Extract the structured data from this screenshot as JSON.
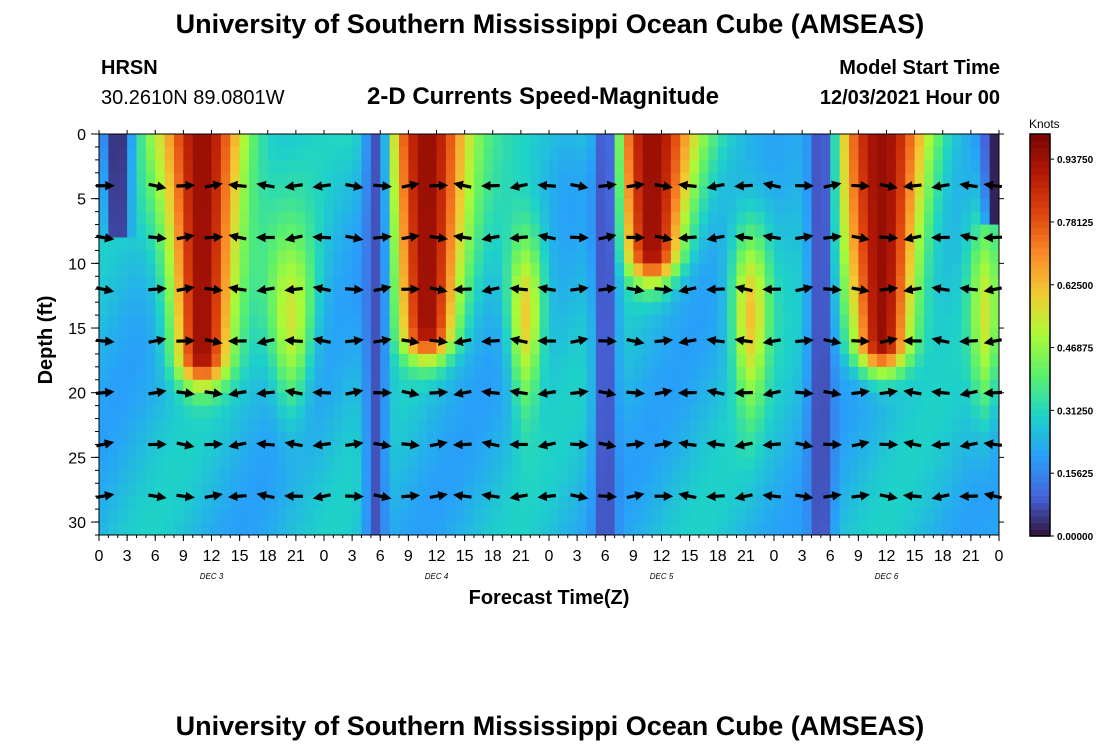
{
  "title": "University of Southern Mississippi Ocean Cube (AMSEAS)",
  "footer_title": "University of Southern Mississippi Ocean Cube (AMSEAS)",
  "station": {
    "name": "HRSN",
    "coords": "30.2610N  89.0801W"
  },
  "plot_title": "2-D Currents Speed-Magnitude",
  "model": {
    "label": "Model Start Time",
    "value": "12/03/2021 Hour 00"
  },
  "chart_data": {
    "type": "heatmap",
    "title": "2-D Currents Speed-Magnitude",
    "xlabel": "Forecast Time(Z)",
    "ylabel": "Depth (ft)",
    "x_ticks": [
      "0",
      "3",
      "6",
      "9",
      "12",
      "15",
      "18",
      "21",
      "0",
      "3",
      "6",
      "9",
      "12",
      "15",
      "18",
      "21",
      "0",
      "3",
      "6",
      "9",
      "12",
      "15",
      "18",
      "21",
      "0",
      "3",
      "6",
      "9",
      "12",
      "15",
      "18",
      "21",
      "0"
    ],
    "date_labels": [
      {
        "label": "DEC 3",
        "hour": 12
      },
      {
        "label": "DEC 4",
        "hour": 36
      },
      {
        "label": "DEC 5",
        "hour": 60
      },
      {
        "label": "DEC 6",
        "hour": 84
      }
    ],
    "xlim": [
      0,
      96
    ],
    "y_ticks": [
      0,
      5,
      10,
      15,
      20,
      25,
      30
    ],
    "ylim": [
      0,
      31
    ],
    "colorbar": {
      "units": "Knots",
      "range": [
        0,
        1.0
      ],
      "tick_labels": [
        "0.00000",
        "0.15625",
        "0.31250",
        "0.46875",
        "0.62500",
        "0.78125",
        "0.93750"
      ],
      "tick_values": [
        0.0,
        0.15625,
        0.3125,
        0.46875,
        0.625,
        0.78125,
        0.9375
      ]
    },
    "vector_depths_ft": [
      4,
      8,
      12,
      16,
      20,
      24,
      28
    ],
    "vector_hours": [
      0,
      6,
      9,
      12,
      15,
      18,
      21,
      24,
      27,
      30,
      33,
      36,
      39,
      42,
      45,
      48,
      51,
      54,
      57,
      60,
      63,
      66,
      69,
      72,
      75,
      78,
      81,
      84,
      87,
      90,
      93,
      96
    ],
    "speed_features": [
      {
        "desc": "surface strong flood",
        "start_hour": 6,
        "end_hour": 16,
        "max_depth_ft": 17,
        "peak_knots": 0.95
      },
      {
        "desc": "surface strong flood",
        "start_hour": 30,
        "end_hour": 40,
        "max_depth_ft": 15,
        "peak_knots": 0.95
      },
      {
        "desc": "surface strong flood",
        "start_hour": 54,
        "end_hour": 64,
        "max_depth_ft": 9,
        "peak_knots": 0.95
      },
      {
        "desc": "surface strong flood",
        "start_hour": 78,
        "end_hour": 89,
        "max_depth_ft": 16,
        "peak_knots": 0.95
      },
      {
        "desc": "mid-depth moderate",
        "start_hour": 17,
        "end_hour": 24,
        "max_depth_ft": 17,
        "peak_knots": 0.55
      },
      {
        "desc": "mid-depth moderate",
        "start_hour": 43,
        "end_hour": 48,
        "max_depth_ft": 16,
        "peak_knots": 0.6
      },
      {
        "desc": "mid-depth moderate",
        "start_hour": 67,
        "end_hour": 72,
        "max_depth_ft": 17,
        "peak_knots": 0.62
      },
      {
        "desc": "mid-depth moderate",
        "start_hour": 93,
        "end_hour": 96,
        "max_depth_ft": 23,
        "peak_knots": 0.55
      },
      {
        "desc": "slack minimum",
        "start_hour": 1,
        "end_hour": 3,
        "max_depth_ft": 7,
        "peak_knots": 0.02
      },
      {
        "desc": "slack minimum",
        "start_hour": 29,
        "end_hour": 30,
        "max_depth_ft": 31,
        "peak_knots": 0.08
      },
      {
        "desc": "slack minimum",
        "start_hour": 54,
        "end_hour": 54,
        "max_depth_ft": 31,
        "peak_knots": 0.06
      },
      {
        "desc": "slack minimum",
        "start_hour": 76,
        "end_hour": 78,
        "max_depth_ft": 31,
        "peak_knots": 0.06
      },
      {
        "desc": "slack minimum",
        "start_hour": 95,
        "end_hour": 96,
        "max_depth_ft": 6,
        "peak_knots": 0.02
      }
    ]
  }
}
